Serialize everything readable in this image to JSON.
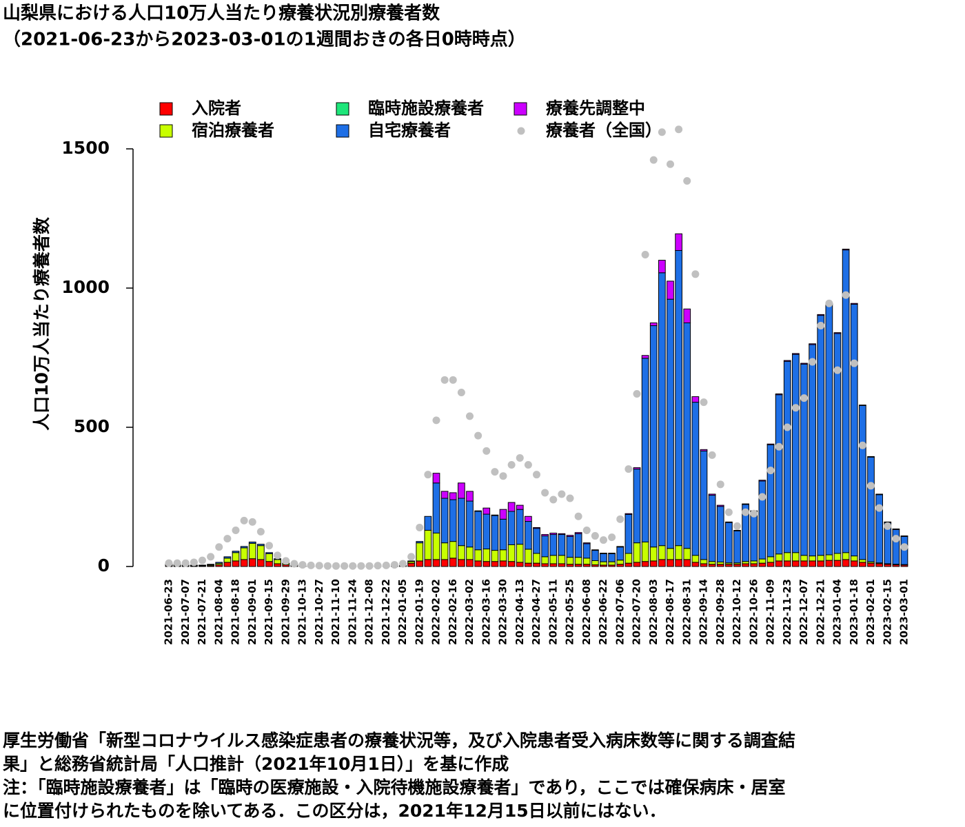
{
  "chart_data": {
    "type": "bar",
    "stacked": true,
    "title": "山梨県における人口10万人当たり療養状況別療養者数",
    "subtitle": "（2021-06-23から2023-03-01の1週間おきの各日0時時点）",
    "ylabel": "人口10万人当たり療養者数",
    "ylim": [
      0,
      1500
    ],
    "yticks": [
      0,
      500,
      1000,
      1500
    ],
    "legend": "top",
    "categories": [
      "2021-06-23",
      null,
      "2021-07-07",
      null,
      "2021-07-21",
      null,
      "2021-08-04",
      null,
      "2021-08-18",
      null,
      "2021-09-01",
      null,
      "2021-09-15",
      null,
      "2021-09-29",
      null,
      "2021-10-13",
      null,
      "2021-10-27",
      null,
      "2021-11-10",
      null,
      "2021-11-24",
      null,
      "2021-12-08",
      null,
      "2021-12-22",
      null,
      "2022-01-05",
      null,
      "2022-01-19",
      null,
      "2022-02-02",
      null,
      "2022-02-16",
      null,
      "2022-03-02",
      null,
      "2022-03-16",
      null,
      "2022-03-30",
      null,
      "2022-04-13",
      null,
      "2022-04-27",
      null,
      "2022-05-11",
      null,
      "2022-05-25",
      null,
      "2022-06-08",
      null,
      "2022-06-22",
      null,
      "2022-07-06",
      null,
      "2022-07-20",
      null,
      "2022-08-03",
      null,
      "2022-08-17",
      null,
      "2022-08-31",
      null,
      "2022-09-14",
      null,
      "2022-09-28",
      null,
      "2022-10-12",
      null,
      "2022-10-26",
      null,
      "2022-11-09",
      null,
      "2022-11-23",
      null,
      "2022-12-07",
      null,
      "2022-12-21",
      null,
      "2023-01-04",
      null,
      "2023-01-18",
      null,
      "2023-02-01",
      null,
      "2023-02-15",
      null,
      "2023-03-01"
    ],
    "series": [
      {
        "name": "入院者",
        "color": "#ff0000",
        "values": [
          3,
          2,
          2,
          2,
          2,
          3,
          6,
          15,
          20,
          25,
          28,
          25,
          18,
          10,
          6,
          4,
          2,
          2,
          2,
          2,
          2,
          2,
          2,
          2,
          2,
          2,
          2,
          2,
          3,
          12,
          20,
          25,
          25,
          25,
          30,
          25,
          25,
          20,
          18,
          18,
          20,
          18,
          15,
          12,
          12,
          10,
          10,
          10,
          8,
          8,
          8,
          6,
          5,
          5,
          8,
          12,
          15,
          18,
          20,
          25,
          25,
          25,
          25,
          15,
          10,
          8,
          8,
          8,
          8,
          10,
          10,
          12,
          15,
          20,
          20,
          20,
          20,
          20,
          20,
          22,
          22,
          25,
          20,
          15,
          12,
          10,
          8,
          6,
          5
        ]
      },
      {
        "name": "宿泊療養者",
        "color": "#c8ff00",
        "values": [
          4,
          3,
          2,
          2,
          2,
          3,
          5,
          15,
          30,
          42,
          55,
          50,
          28,
          15,
          5,
          3,
          0,
          0,
          0,
          0,
          0,
          0,
          0,
          0,
          0,
          0,
          0,
          0,
          1,
          6,
          65,
          105,
          95,
          60,
          60,
          50,
          45,
          40,
          45,
          40,
          40,
          60,
          65,
          50,
          35,
          25,
          30,
          30,
          25,
          25,
          22,
          15,
          12,
          12,
          15,
          35,
          70,
          70,
          50,
          50,
          40,
          50,
          40,
          25,
          15,
          10,
          8,
          5,
          5,
          8,
          10,
          15,
          20,
          25,
          30,
          30,
          20,
          18,
          20,
          20,
          25,
          25,
          18,
          10,
          5,
          3,
          2,
          2,
          2
        ]
      },
      {
        "name": "臨時施設療養者",
        "color": "#1ee67a",
        "values": [
          0,
          0,
          0,
          0,
          0,
          0,
          0,
          0,
          0,
          0,
          0,
          0,
          0,
          0,
          0,
          0,
          0,
          0,
          0,
          0,
          0,
          0,
          0,
          0,
          0,
          0,
          0,
          0,
          0,
          0,
          0,
          0,
          0,
          0,
          0,
          0,
          0,
          0,
          0,
          0,
          0,
          0,
          0,
          0,
          0,
          0,
          0,
          0,
          0,
          0,
          0,
          0,
          0,
          0,
          0,
          0,
          0,
          0,
          0,
          0,
          0,
          0,
          0,
          0,
          0,
          0,
          0,
          0,
          0,
          0,
          0,
          0,
          0,
          0,
          0,
          0,
          0,
          0,
          0,
          0,
          0,
          0,
          0,
          0,
          0,
          0,
          0,
          0,
          0
        ]
      },
      {
        "name": "自宅療養者",
        "color": "#1e6fe6",
        "values": [
          3,
          3,
          1,
          1,
          1,
          2,
          4,
          5,
          5,
          5,
          5,
          5,
          4,
          3,
          1,
          1,
          0,
          0,
          0,
          0,
          0,
          0,
          0,
          0,
          0,
          0,
          0,
          0,
          0,
          2,
          5,
          50,
          180,
          160,
          150,
          170,
          165,
          138,
          125,
          125,
          110,
          120,
          125,
          100,
          90,
          75,
          75,
          75,
          75,
          85,
          52,
          37,
          29,
          29,
          47,
          140,
          265,
          660,
          795,
          980,
          895,
          1060,
          810,
          550,
          390,
          238,
          200,
          145,
          115,
          205,
          178,
          280,
          402,
          572,
          687,
          712,
          687,
          759,
          862,
          900,
          790,
          1087,
          904,
          553,
          376,
          245,
          148,
          125,
          101
        ]
      },
      {
        "name": "療養先調整中",
        "color": "#cc00ff",
        "values": [
          0,
          0,
          0,
          0,
          0,
          0,
          0,
          0,
          0,
          0,
          0,
          0,
          0,
          0,
          0,
          0,
          0,
          0,
          0,
          0,
          0,
          0,
          0,
          0,
          0,
          0,
          0,
          0,
          0,
          0,
          0,
          0,
          35,
          25,
          25,
          55,
          35,
          2,
          22,
          2,
          35,
          32,
          15,
          18,
          3,
          5,
          5,
          3,
          4,
          4,
          3,
          2,
          2,
          2,
          2,
          3,
          5,
          10,
          10,
          45,
          65,
          60,
          50,
          20,
          5,
          4,
          4,
          2,
          2,
          2,
          2,
          3,
          3,
          3,
          3,
          3,
          3,
          3,
          3,
          3,
          3,
          3,
          3,
          2,
          2,
          2,
          2,
          2,
          2
        ]
      },
      {
        "name": "療養者（全国）",
        "color": "#c0c0c0",
        "type": "scatter",
        "values": [
          12,
          12,
          12,
          15,
          22,
          35,
          70,
          100,
          130,
          165,
          160,
          125,
          75,
          40,
          20,
          10,
          6,
          4,
          3,
          2,
          2,
          2,
          2,
          2,
          2,
          3,
          4,
          6,
          10,
          35,
          140,
          330,
          525,
          670,
          670,
          625,
          540,
          470,
          415,
          340,
          325,
          365,
          390,
          365,
          330,
          265,
          240,
          260,
          245,
          180,
          130,
          110,
          95,
          105,
          170,
          350,
          620,
          1120,
          1460,
          1560,
          1445,
          1570,
          1385,
          1050,
          590,
          400,
          295,
          195,
          145,
          195,
          190,
          250,
          345,
          430,
          500,
          570,
          605,
          735,
          865,
          945,
          705,
          975,
          730,
          435,
          290,
          210,
          145,
          100,
          70
        ]
      }
    ],
    "notes": [
      "厚生労働省「新型コロナウイルス感染症患者の療養状況等，及び入院患者受入病床数等に関する調査結",
      "果」と総務省統計局「人口推計（2021年10月1日）」を基に作成",
      "注：「臨時施設療養者」は「臨時の医療施設・入院待機施設療養者」であり，ここでは確保病床・居室",
      "に位置付けられたものを除いてある．この区分は，2021年12月15日以前にはない．"
    ]
  }
}
